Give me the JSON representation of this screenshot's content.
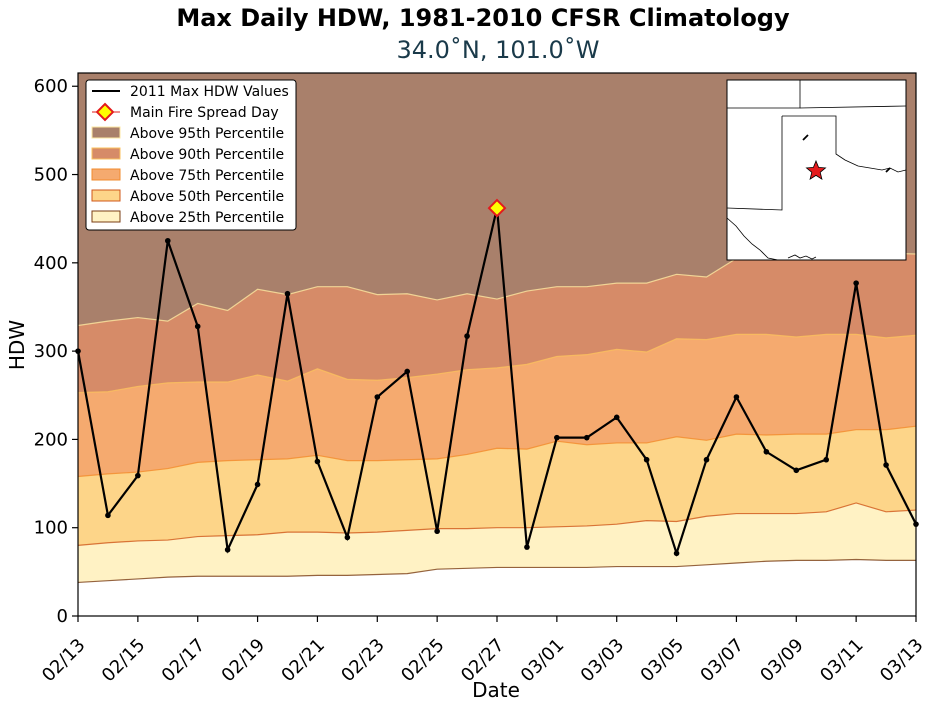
{
  "chart_data": {
    "type": "area",
    "title": "Max Daily HDW, 1981-2010 CFSR Climatology",
    "subtitle": "34.0˚N, 101.0˚W",
    "xlabel": "Date",
    "ylabel": "HDW",
    "ylim": [
      0,
      615
    ],
    "yticks": [
      0,
      100,
      200,
      300,
      400,
      500,
      600
    ],
    "x": [
      "02/13",
      "02/14",
      "02/15",
      "02/16",
      "02/17",
      "02/18",
      "02/19",
      "02/20",
      "02/21",
      "02/22",
      "02/23",
      "02/24",
      "02/25",
      "02/26",
      "02/27",
      "02/28",
      "03/01",
      "03/02",
      "03/03",
      "03/04",
      "03/05",
      "03/06",
      "03/07",
      "03/08",
      "03/09",
      "03/10",
      "03/11",
      "03/12",
      "03/13"
    ],
    "xtick_labels": [
      "02/13",
      "02/15",
      "02/17",
      "02/19",
      "02/21",
      "02/23",
      "02/25",
      "02/27",
      "03/01",
      "03/03",
      "03/05",
      "03/07",
      "03/09",
      "03/11",
      "03/13"
    ],
    "percentiles": [
      {
        "name": "Above 25th Percentile",
        "color": "#fff2c4",
        "values": [
          38,
          40,
          42,
          44,
          45,
          45,
          45,
          45,
          46,
          46,
          47,
          48,
          53,
          54,
          55,
          55,
          55,
          55,
          56,
          56,
          56,
          58,
          60,
          62,
          63,
          63,
          64,
          63,
          63
        ]
      },
      {
        "name": "Above 50th Percentile",
        "color": "#fdd589",
        "values": [
          80,
          83,
          85,
          86,
          90,
          91,
          92,
          95,
          95,
          94,
          95,
          97,
          99,
          99,
          100,
          100,
          101,
          102,
          104,
          108,
          107,
          113,
          116,
          116,
          116,
          118,
          128,
          118,
          120
        ]
      },
      {
        "name": "Above 75th Percentile",
        "color": "#f5aa6f",
        "values": [
          158,
          161,
          163,
          167,
          174,
          176,
          177,
          178,
          182,
          176,
          176,
          177,
          178,
          183,
          190,
          189,
          198,
          194,
          196,
          196,
          203,
          199,
          206,
          205,
          206,
          206,
          211,
          211,
          215
        ]
      },
      {
        "name": "Above 90th Percentile",
        "color": "#d68b68",
        "values": [
          253,
          254,
          260,
          264,
          265,
          265,
          273,
          266,
          280,
          268,
          267,
          270,
          274,
          279,
          281,
          285,
          294,
          296,
          302,
          299,
          314,
          313,
          319,
          319,
          316,
          319,
          319,
          315,
          318
        ]
      },
      {
        "name": "Above 95th Percentile",
        "color": "#a9806b",
        "values": [
          329,
          334,
          338,
          334,
          354,
          346,
          370,
          364,
          373,
          373,
          364,
          365,
          358,
          365,
          359,
          368,
          373,
          373,
          377,
          377,
          387,
          384,
          405,
          407,
          404,
          409,
          407,
          411,
          410
        ]
      }
    ],
    "series": [
      {
        "name": "2011 Max HDW Values",
        "color": "#000000",
        "values": [
          300,
          114,
          159,
          425,
          328,
          75,
          149,
          365,
          175,
          89,
          248,
          277,
          96,
          317,
          462,
          78,
          202,
          202,
          225,
          177,
          71,
          177,
          248,
          186,
          165,
          177,
          377,
          171,
          104
        ]
      }
    ],
    "highlight": {
      "name": "Main Fire Spread Day",
      "x": "02/27",
      "value": 462,
      "fill": "#ffff00",
      "edge": "#e31a1c"
    },
    "legend_position": "top-left",
    "inset_map": {
      "marker": "star",
      "marker_color": "#e31a1c"
    },
    "grid": false
  }
}
